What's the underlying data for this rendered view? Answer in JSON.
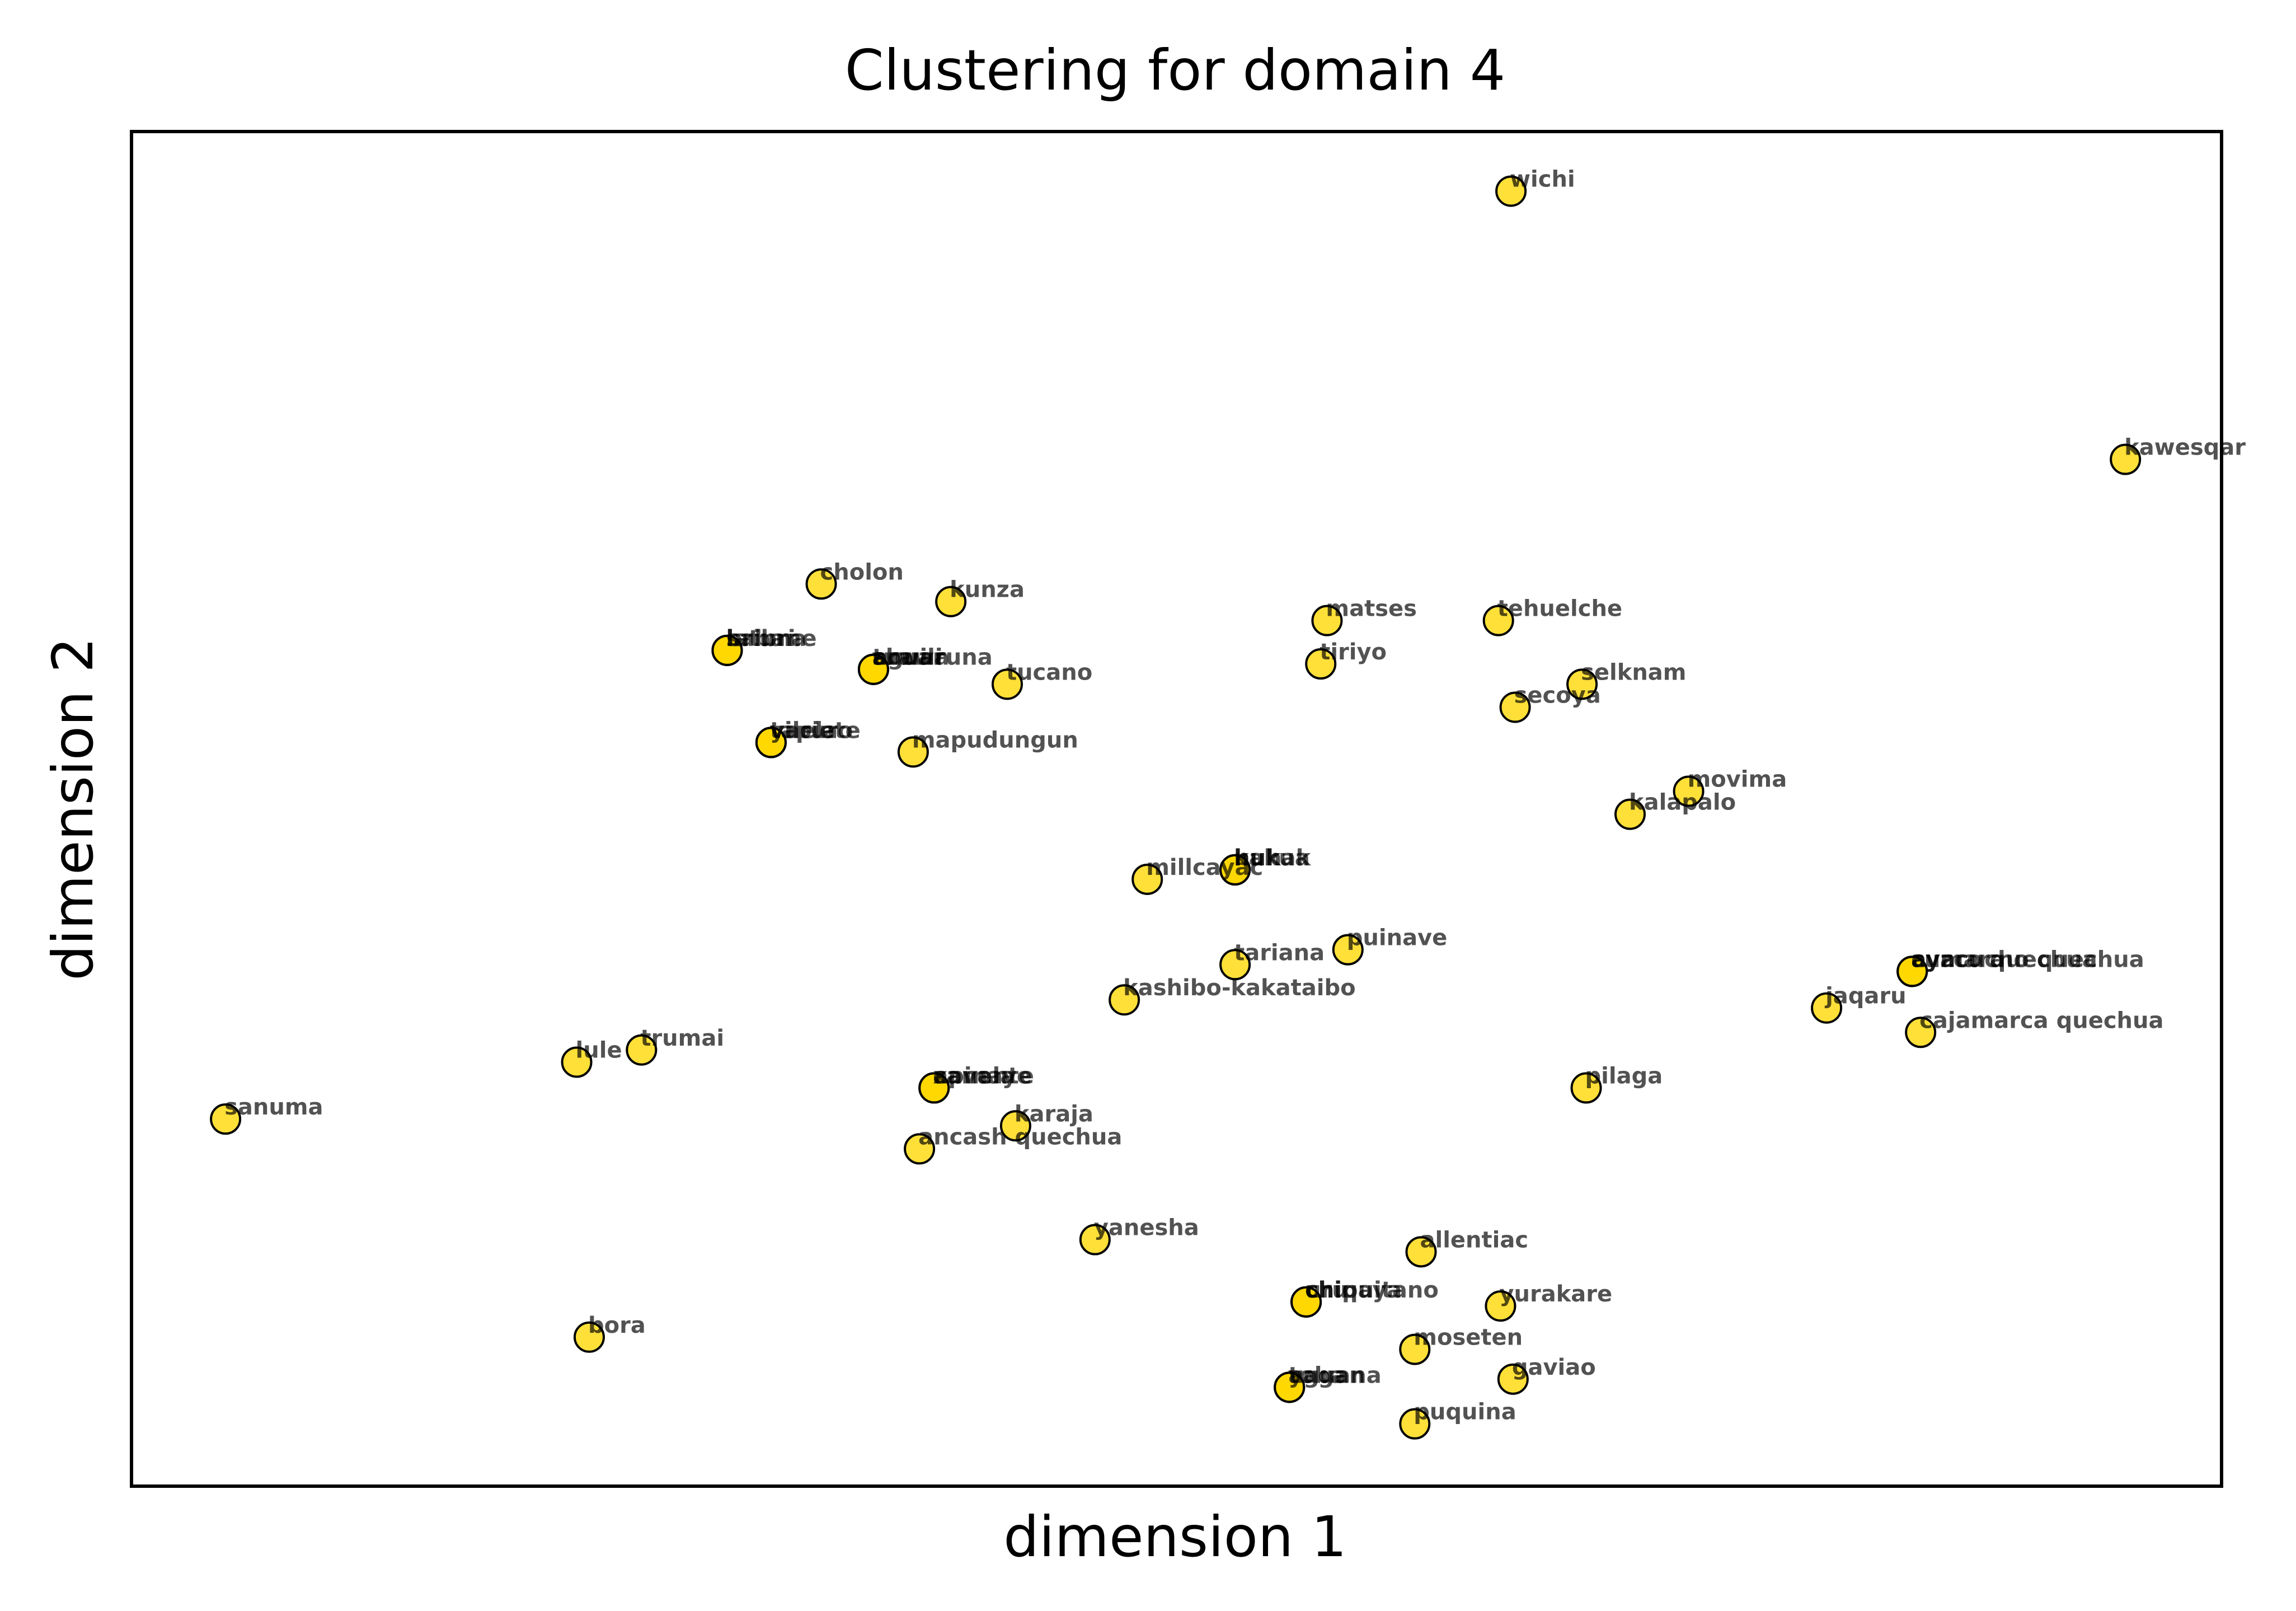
{
  "chart_data": {
    "type": "scatter",
    "title": "Clustering for domain 4",
    "xlabel": "dimension 1",
    "ylabel": "dimension 2",
    "xlim": [
      0,
      100
    ],
    "ylim": [
      0,
      100
    ],
    "grid": false,
    "legend": "none",
    "point_color": "#FFD700",
    "points": [
      {
        "label": "wichi",
        "x": 66.0,
        "y": 95.6
      },
      {
        "label": "kawesqar",
        "x": 95.4,
        "y": 75.8
      },
      {
        "label": "cholon",
        "x": 33.0,
        "y": 66.6
      },
      {
        "label": "kunza",
        "x": 39.2,
        "y": 65.3
      },
      {
        "label": "matses",
        "x": 57.2,
        "y": 63.9
      },
      {
        "label": "tehuelche",
        "x": 65.4,
        "y": 63.9
      },
      {
        "label": "sabane",
        "x": 28.5,
        "y": 61.7
      },
      {
        "label": "bribri",
        "x": 28.5,
        "y": 61.7
      },
      {
        "label": "latuna",
        "x": 28.5,
        "y": 61.7
      },
      {
        "label": "tiriyo",
        "x": 56.9,
        "y": 60.7
      },
      {
        "label": "aguaruna",
        "x": 35.5,
        "y": 60.3
      },
      {
        "label": "tuwili",
        "x": 35.5,
        "y": 60.3
      },
      {
        "label": "shuar",
        "x": 35.5,
        "y": 60.3
      },
      {
        "label": "arawa",
        "x": 35.5,
        "y": 60.3
      },
      {
        "label": "tucano",
        "x": 41.9,
        "y": 59.2
      },
      {
        "label": "selknam",
        "x": 69.4,
        "y": 59.2
      },
      {
        "label": "secoya",
        "x": 66.2,
        "y": 57.5
      },
      {
        "label": "yaruro",
        "x": 30.6,
        "y": 54.9
      },
      {
        "label": "vilela",
        "x": 30.6,
        "y": 54.9
      },
      {
        "label": "tapiete",
        "x": 30.6,
        "y": 54.9
      },
      {
        "label": "mapudungun",
        "x": 37.4,
        "y": 54.2
      },
      {
        "label": "movima",
        "x": 74.5,
        "y": 51.3
      },
      {
        "label": "kalapalo",
        "x": 71.7,
        "y": 49.6
      },
      {
        "label": "nukak",
        "x": 52.8,
        "y": 45.5
      },
      {
        "label": "huh",
        "x": 52.8,
        "y": 45.5
      },
      {
        "label": "kakua",
        "x": 52.8,
        "y": 45.5
      },
      {
        "label": "millcayac",
        "x": 48.6,
        "y": 44.8
      },
      {
        "label": "puinave",
        "x": 58.2,
        "y": 39.6
      },
      {
        "label": "tariana",
        "x": 52.8,
        "y": 38.5
      },
      {
        "label": "ayacucho quechua",
        "x": 85.2,
        "y": 38.0
      },
      {
        "label": "cuzco quechua",
        "x": 85.2,
        "y": 38.0
      },
      {
        "label": "aymara",
        "x": 85.2,
        "y": 38.0
      },
      {
        "label": "kashibo-kakataibo",
        "x": 47.5,
        "y": 35.9
      },
      {
        "label": "jaqaru",
        "x": 81.1,
        "y": 35.3
      },
      {
        "label": "cajamarca quechua",
        "x": 85.6,
        "y": 33.5
      },
      {
        "label": "trumai",
        "x": 24.4,
        "y": 32.2
      },
      {
        "label": "lule",
        "x": 21.3,
        "y": 31.3
      },
      {
        "label": "sanuma",
        "x": 4.5,
        "y": 27.1
      },
      {
        "label": "apinaye",
        "x": 38.4,
        "y": 29.4
      },
      {
        "label": "canela",
        "x": 38.4,
        "y": 29.4
      },
      {
        "label": "xavante",
        "x": 38.4,
        "y": 29.4
      },
      {
        "label": "pilaga",
        "x": 69.6,
        "y": 29.4
      },
      {
        "label": "karaja",
        "x": 42.3,
        "y": 26.6
      },
      {
        "label": "ancash quechua",
        "x": 37.7,
        "y": 24.9
      },
      {
        "label": "yanesha",
        "x": 46.1,
        "y": 18.2
      },
      {
        "label": "allentiac",
        "x": 61.7,
        "y": 17.3
      },
      {
        "label": "chipaya",
        "x": 56.2,
        "y": 13.6
      },
      {
        "label": "uru",
        "x": 56.2,
        "y": 13.6
      },
      {
        "label": "chiquitano",
        "x": 56.2,
        "y": 13.6
      },
      {
        "label": "yurakare",
        "x": 65.5,
        "y": 13.3
      },
      {
        "label": "bora",
        "x": 21.9,
        "y": 11.0
      },
      {
        "label": "moseten",
        "x": 61.4,
        "y": 10.1
      },
      {
        "label": "gaviao",
        "x": 66.1,
        "y": 7.9
      },
      {
        "label": "yagan",
        "x": 55.4,
        "y": 7.3
      },
      {
        "label": "toba",
        "x": 55.4,
        "y": 7.3
      },
      {
        "label": "aguana",
        "x": 55.4,
        "y": 7.3
      },
      {
        "label": "puquina",
        "x": 61.4,
        "y": 4.6
      }
    ]
  }
}
